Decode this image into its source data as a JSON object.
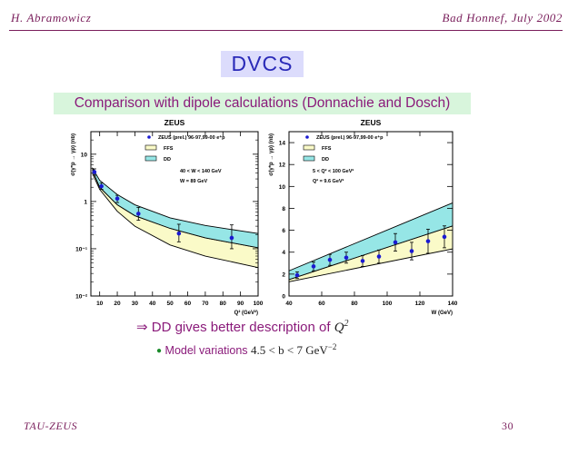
{
  "header": {
    "author": "H. Abramowicz",
    "venue": "Bad Honnef, July 2002"
  },
  "slide": {
    "title": "DVCS",
    "subtitle": "Comparison with dipole calculations (Donnachie and Dosch)",
    "bullet_main": {
      "arrow": "⇒",
      "text": "DD gives better description of ",
      "var": "Q",
      "sup": "2"
    },
    "bullet_sub": {
      "text": "Model variations ",
      "math": "4.5 < b < 7 GeV",
      "sup": "−2"
    }
  },
  "footer": {
    "left": "TAU-ZEUS",
    "page": "30"
  },
  "colors": {
    "ffs_band": "#fafac8",
    "dd_band": "#96e6e6",
    "points": "#1a1ad2",
    "accent": "#7a1f5c"
  },
  "chart_data": [
    {
      "type": "scatter",
      "title": "ZEUS",
      "xlabel": "Q² (GeV²)",
      "ylabel": "σ(γ*p → γp) (nb)",
      "xlim": [
        5,
        100
      ],
      "ylim": [
        0.01,
        30
      ],
      "yscale": "log",
      "xticks": [
        10,
        20,
        30,
        40,
        50,
        60,
        70,
        80,
        90,
        100
      ],
      "yticks": [
        {
          "v": 0.01,
          "label": "10⁻²"
        },
        {
          "v": 0.1,
          "label": "10⁻¹"
        },
        {
          "v": 1,
          "label": "1"
        },
        {
          "v": 10,
          "label": "10"
        }
      ],
      "legend": [
        "ZEUS (prel.) 96-97,99-00 e⁺p",
        "FFS",
        "DD"
      ],
      "legend_placement": "top-right",
      "annotations": [
        "40 < W < 140 GeV",
        "W = 89 GeV"
      ],
      "grid": false,
      "series": [
        {
          "name": "ZEUS (prel.) 96-97,99-00 e⁺p",
          "x": [
            7,
            11,
            20,
            32,
            55,
            85
          ],
          "y": [
            4.2,
            2.1,
            1.15,
            0.55,
            0.21,
            0.17
          ],
          "err_lo": [
            0.6,
            0.3,
            0.2,
            0.15,
            0.07,
            0.07
          ],
          "err_hi": [
            0.7,
            0.35,
            0.2,
            0.2,
            0.12,
            0.15
          ]
        },
        {
          "name": "DD",
          "x": [
            6,
            10,
            20,
            30,
            50,
            70,
            100
          ],
          "lo": [
            4.5,
            2.0,
            0.85,
            0.5,
            0.27,
            0.17,
            0.105
          ],
          "hi": [
            5.0,
            2.8,
            1.4,
            0.85,
            0.45,
            0.31,
            0.21
          ]
        },
        {
          "name": "FFS",
          "x": [
            6,
            10,
            20,
            30,
            50,
            70,
            100
          ],
          "lo": [
            3.8,
            1.8,
            0.62,
            0.3,
            0.12,
            0.07,
            0.04
          ],
          "hi": [
            4.5,
            2.0,
            0.85,
            0.5,
            0.27,
            0.17,
            0.105
          ]
        }
      ]
    },
    {
      "type": "scatter",
      "title": "ZEUS",
      "xlabel": "W (GeV)",
      "ylabel": "σ(γ*p → γp) (nb)",
      "xlim": [
        40,
        140
      ],
      "ylim": [
        0,
        15
      ],
      "xticks": [
        40,
        60,
        80,
        100,
        120,
        140
      ],
      "yticks": [
        {
          "v": 0,
          "label": "0"
        },
        {
          "v": 2,
          "label": "2"
        },
        {
          "v": 4,
          "label": "4"
        },
        {
          "v": 6,
          "label": "6"
        },
        {
          "v": 8,
          "label": "8"
        },
        {
          "v": 10,
          "label": "10"
        },
        {
          "v": 12,
          "label": "12"
        },
        {
          "v": 14,
          "label": "14"
        }
      ],
      "legend": [
        "ZEUS (prel.) 96-97,99-00 e⁺p",
        "FFS",
        "DD"
      ],
      "legend_placement": "top-left",
      "annotations": [
        "5 < Q² < 100 GeV²",
        "Q² = 9.6 GeV²"
      ],
      "grid": false,
      "series": [
        {
          "name": "ZEUS (prel.) 96-97,99-00 e⁺p",
          "x": [
            45,
            55,
            65,
            75,
            85,
            95,
            105,
            115,
            125,
            135
          ],
          "y": [
            1.9,
            2.7,
            3.3,
            3.5,
            3.2,
            3.6,
            4.9,
            4.1,
            5.0,
            5.4
          ],
          "err": [
            0.3,
            0.4,
            0.5,
            0.5,
            0.5,
            0.6,
            0.8,
            0.8,
            1.1,
            1.0
          ]
        },
        {
          "name": "DD",
          "x": [
            40,
            140
          ],
          "lo": [
            1.5,
            6.4
          ],
          "hi": [
            2.3,
            8.5
          ]
        },
        {
          "name": "FFS",
          "x": [
            40,
            140
          ],
          "lo": [
            1.3,
            4.3
          ],
          "hi": [
            1.5,
            6.4
          ]
        }
      ]
    }
  ]
}
